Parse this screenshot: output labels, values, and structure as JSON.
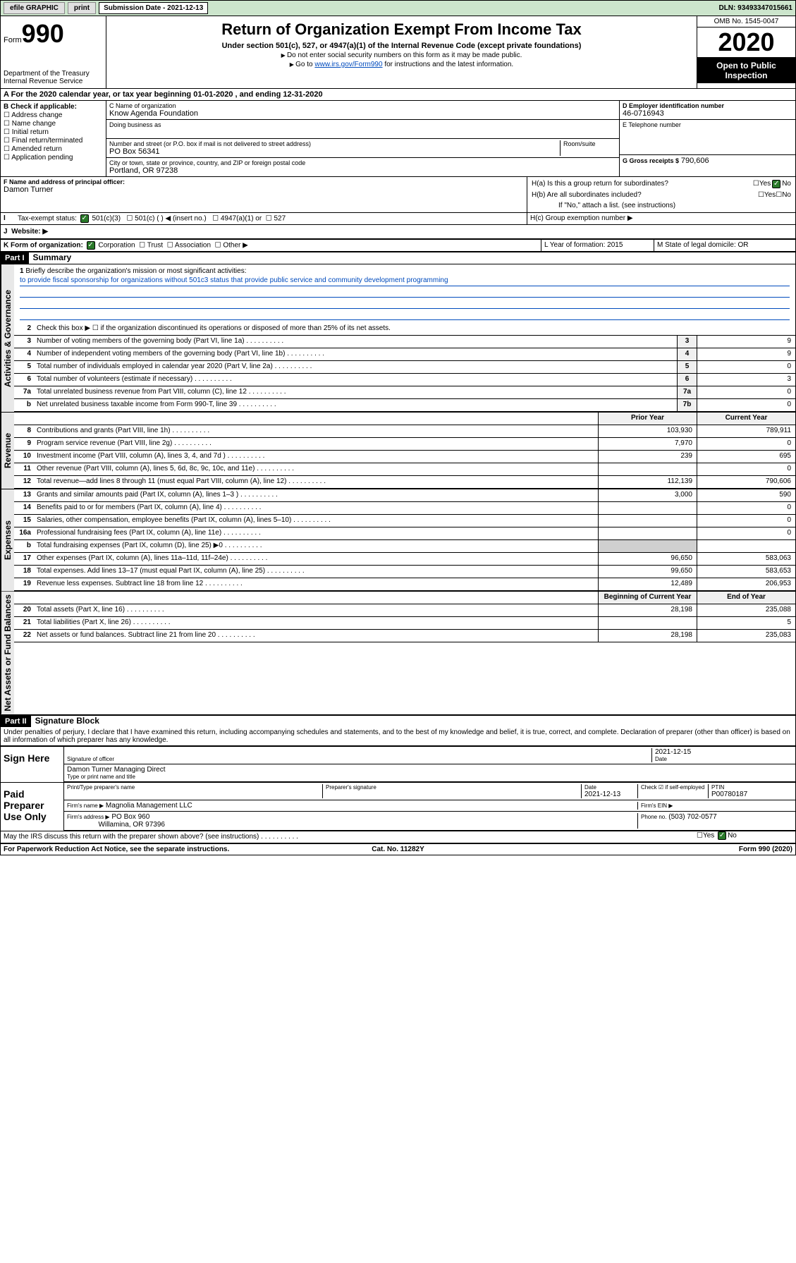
{
  "topbar": {
    "efile": "efile GRAPHIC",
    "print": "print",
    "subdate_label": "Submission Date - 2021-12-13",
    "dln": "DLN: 93493347015661"
  },
  "header": {
    "form_prefix": "Form",
    "form_num": "990",
    "dept": "Department of the Treasury",
    "irs": "Internal Revenue Service",
    "title": "Return of Organization Exempt From Income Tax",
    "subtitle": "Under section 501(c), 527, or 4947(a)(1) of the Internal Revenue Code (except private foundations)",
    "note1": "Do not enter social security numbers on this form as it may be made public.",
    "note2_pre": "Go to ",
    "note2_link": "www.irs.gov/Form990",
    "note2_post": " for instructions and the latest information.",
    "omb": "OMB No. 1545-0047",
    "year": "2020",
    "inspection": "Open to Public Inspection"
  },
  "period": "For the 2020 calendar year, or tax year beginning 01-01-2020   , and ending 12-31-2020",
  "section_b": {
    "label": "B Check if applicable:",
    "items": [
      "Address change",
      "Name change",
      "Initial return",
      "Final return/terminated",
      "Amended return",
      "Application pending"
    ]
  },
  "section_c": {
    "name_label": "C Name of organization",
    "name": "Know Agenda Foundation",
    "dba_label": "Doing business as",
    "addr_label": "Number and street (or P.O. box if mail is not delivered to street address)",
    "room_label": "Room/suite",
    "addr": "PO Box 56341",
    "city_label": "City or town, state or province, country, and ZIP or foreign postal code",
    "city": "Portland, OR  97238"
  },
  "section_d": {
    "label": "D Employer identification number",
    "val": "46-0716943"
  },
  "section_e": {
    "label": "E Telephone number",
    "val": ""
  },
  "section_g": {
    "label": "G Gross receipts $",
    "val": "790,606"
  },
  "section_f": {
    "label": "F  Name and address of principal officer:",
    "name": "Damon Turner"
  },
  "section_h": {
    "h_a": "H(a)  Is this a group return for subordinates?",
    "h_b": "H(b)  Are all subordinates included?",
    "h_b_note": "If \"No,\" attach a list. (see instructions)",
    "h_c": "H(c)  Group exemption number ▶",
    "yes": "Yes",
    "no": "No"
  },
  "status": {
    "label": "Tax-exempt status:",
    "c3": "501(c)(3)",
    "c": "501(c) (  ) ◀ (insert no.)",
    "a1": "4947(a)(1) or",
    "s527": "527"
  },
  "website_label": "Website: ▶",
  "section_k": {
    "label": "K Form of organization:",
    "corp": "Corporation",
    "trust": "Trust",
    "assoc": "Association",
    "other": "Other ▶"
  },
  "section_l": {
    "label": "L Year of formation:",
    "val": "2015"
  },
  "section_m": {
    "label": "M State of legal domicile:",
    "val": "OR"
  },
  "parts": {
    "p1": "Part I",
    "p1_title": "Summary",
    "p2": "Part II",
    "p2_title": "Signature Block"
  },
  "mission": {
    "label": "Briefly describe the organization's mission or most significant activities:",
    "text": "to provide fiscal sponsorship for organizations without 501c3 status that provide public service and community development programming"
  },
  "line2": "Check this box ▶ ☐  if the organization discontinued its operations or disposed of more than 25% of its net assets.",
  "vert_labels": {
    "gov": "Activities & Governance",
    "rev": "Revenue",
    "exp": "Expenses",
    "net": "Net Assets or Fund Balances"
  },
  "gov_lines": [
    {
      "n": "3",
      "d": "Number of voting members of the governing body (Part VI, line 1a)",
      "c": "3",
      "v": "9"
    },
    {
      "n": "4",
      "d": "Number of independent voting members of the governing body (Part VI, line 1b)",
      "c": "4",
      "v": "9"
    },
    {
      "n": "5",
      "d": "Total number of individuals employed in calendar year 2020 (Part V, line 2a)",
      "c": "5",
      "v": "0"
    },
    {
      "n": "6",
      "d": "Total number of volunteers (estimate if necessary)",
      "c": "6",
      "v": "3"
    },
    {
      "n": "7a",
      "d": "Total unrelated business revenue from Part VIII, column (C), line 12",
      "c": "7a",
      "v": "0"
    },
    {
      "n": "b",
      "d": "Net unrelated business taxable income from Form 990-T, line 39",
      "c": "7b",
      "v": "0"
    }
  ],
  "two_col_header": {
    "prior": "Prior Year",
    "current": "Current Year"
  },
  "rev_lines": [
    {
      "n": "8",
      "d": "Contributions and grants (Part VIII, line 1h)",
      "p": "103,930",
      "c": "789,911"
    },
    {
      "n": "9",
      "d": "Program service revenue (Part VIII, line 2g)",
      "p": "7,970",
      "c": "0"
    },
    {
      "n": "10",
      "d": "Investment income (Part VIII, column (A), lines 3, 4, and 7d )",
      "p": "239",
      "c": "695"
    },
    {
      "n": "11",
      "d": "Other revenue (Part VIII, column (A), lines 5, 6d, 8c, 9c, 10c, and 11e)",
      "p": "",
      "c": "0"
    },
    {
      "n": "12",
      "d": "Total revenue—add lines 8 through 11 (must equal Part VIII, column (A), line 12)",
      "p": "112,139",
      "c": "790,606"
    }
  ],
  "exp_lines": [
    {
      "n": "13",
      "d": "Grants and similar amounts paid (Part IX, column (A), lines 1–3 )",
      "p": "3,000",
      "c": "590"
    },
    {
      "n": "14",
      "d": "Benefits paid to or for members (Part IX, column (A), line 4)",
      "p": "",
      "c": "0"
    },
    {
      "n": "15",
      "d": "Salaries, other compensation, employee benefits (Part IX, column (A), lines 5–10)",
      "p": "",
      "c": "0"
    },
    {
      "n": "16a",
      "d": "Professional fundraising fees (Part IX, column (A), line 11e)",
      "p": "",
      "c": "0"
    },
    {
      "n": "b",
      "d": "Total fundraising expenses (Part IX, column (D), line 25) ▶0",
      "p": "shaded",
      "c": "shaded"
    },
    {
      "n": "17",
      "d": "Other expenses (Part IX, column (A), lines 11a–11d, 11f–24e)",
      "p": "96,650",
      "c": "583,063"
    },
    {
      "n": "18",
      "d": "Total expenses. Add lines 13–17 (must equal Part IX, column (A), line 25)",
      "p": "99,650",
      "c": "583,653"
    },
    {
      "n": "19",
      "d": "Revenue less expenses. Subtract line 18 from line 12",
      "p": "12,489",
      "c": "206,953"
    }
  ],
  "net_header": {
    "begin": "Beginning of Current Year",
    "end": "End of Year"
  },
  "net_lines": [
    {
      "n": "20",
      "d": "Total assets (Part X, line 16)",
      "p": "28,198",
      "c": "235,088"
    },
    {
      "n": "21",
      "d": "Total liabilities (Part X, line 26)",
      "p": "",
      "c": "5"
    },
    {
      "n": "22",
      "d": "Net assets or fund balances. Subtract line 21 from line 20",
      "p": "28,198",
      "c": "235,083"
    }
  ],
  "declaration": "Under penalties of perjury, I declare that I have examined this return, including accompanying schedules and statements, and to the best of my knowledge and belief, it is true, correct, and complete. Declaration of preparer (other than officer) is based on all information of which preparer has any knowledge.",
  "sign": {
    "here": "Sign Here",
    "sig_label": "Signature of officer",
    "date": "2021-12-15",
    "date_label": "Date",
    "name": "Damon Turner Managing Direct",
    "name_label": "Type or print name and title"
  },
  "paid": {
    "label": "Paid Preparer Use Only",
    "h1": "Print/Type preparer's name",
    "h2": "Preparer's signature",
    "h3": "Date",
    "date": "2021-12-13",
    "h4": "Check ☑ if self-employed",
    "h5": "PTIN",
    "ptin": "P00780187",
    "firm_label": "Firm's name    ▶",
    "firm": "Magnolia Management LLC",
    "ein_label": "Firm's EIN ▶",
    "addr_label": "Firm's address ▶",
    "addr1": "PO Box 960",
    "addr2": "Willamina, OR  97396",
    "phone_label": "Phone no.",
    "phone": "(503) 702-0577"
  },
  "discuss": "May the IRS discuss this return with the preparer shown above? (see instructions)",
  "footer": {
    "pra": "For Paperwork Reduction Act Notice, see the separate instructions.",
    "cat": "Cat. No. 11282Y",
    "form": "Form 990 (2020)"
  }
}
